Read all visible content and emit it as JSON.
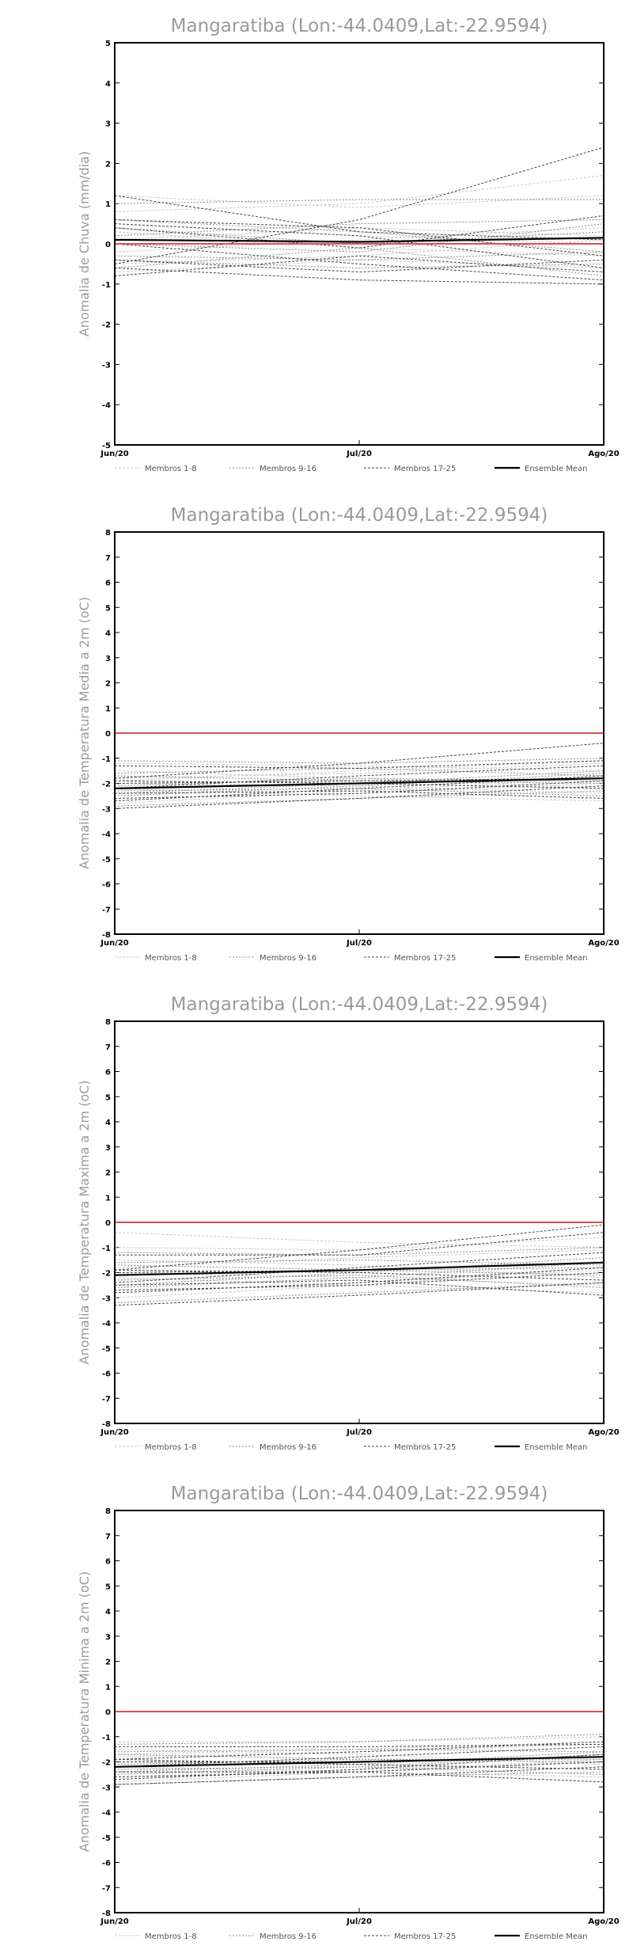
{
  "chart_data": [
    {
      "type": "line",
      "title": "Mangaratiba (Lon:-44.0409,Lat:-22.9594)",
      "ylabel": "Anomalia de Chuva (mm/dia)",
      "x": [
        "Jun/20",
        "Jul/20",
        "Ago/20"
      ],
      "ylim": [
        -5,
        5
      ],
      "yticks": [
        -5,
        -4,
        -3,
        -2,
        -1,
        0,
        1,
        2,
        3,
        4,
        5
      ],
      "zero_line_color": "#d9534f",
      "legend": [
        "Membros 1-8",
        "Membros 9-16",
        "Membros 17-25",
        "Ensemble Mean"
      ],
      "series": [
        {
          "group": 1,
          "values": [
            0.8,
            1.0,
            1.7
          ]
        },
        {
          "group": 1,
          "values": [
            1.2,
            0.9,
            1.2
          ]
        },
        {
          "group": 1,
          "values": [
            -0.2,
            0.1,
            0.4
          ]
        },
        {
          "group": 1,
          "values": [
            0.3,
            -0.1,
            -0.3
          ]
        },
        {
          "group": 1,
          "values": [
            -0.5,
            -0.3,
            0.1
          ]
        },
        {
          "group": 1,
          "values": [
            0.1,
            0.4,
            0.2
          ]
        },
        {
          "group": 1,
          "values": [
            -0.7,
            -0.4,
            -0.6
          ]
        },
        {
          "group": 1,
          "values": [
            0.5,
            0.2,
            0.0
          ]
        },
        {
          "group": 2,
          "values": [
            1.0,
            1.1,
            1.1
          ]
        },
        {
          "group": 2,
          "values": [
            0.6,
            0.3,
            -0.2
          ]
        },
        {
          "group": 2,
          "values": [
            -0.4,
            -0.6,
            -0.5
          ]
        },
        {
          "group": 2,
          "values": [
            0.0,
            -0.2,
            0.5
          ]
        },
        {
          "group": 2,
          "values": [
            -0.6,
            -0.1,
            -0.8
          ]
        },
        {
          "group": 2,
          "values": [
            0.4,
            0.0,
            0.3
          ]
        },
        {
          "group": 2,
          "values": [
            -0.3,
            -0.4,
            -0.2
          ]
        },
        {
          "group": 2,
          "values": [
            0.2,
            0.5,
            0.6
          ]
        },
        {
          "group": 3,
          "values": [
            -0.5,
            0.6,
            2.4
          ]
        },
        {
          "group": 3,
          "values": [
            1.2,
            0.3,
            0.1
          ]
        },
        {
          "group": 3,
          "values": [
            0.5,
            0.2,
            -0.6
          ]
        },
        {
          "group": 3,
          "values": [
            -0.8,
            -0.3,
            -0.7
          ]
        },
        {
          "group": 3,
          "values": [
            0.0,
            -0.5,
            -0.9
          ]
        },
        {
          "group": 3,
          "values": [
            0.4,
            -0.1,
            0.7
          ]
        },
        {
          "group": 3,
          "values": [
            -0.4,
            -0.7,
            -0.4
          ]
        },
        {
          "group": 3,
          "values": [
            0.6,
            0.4,
            -0.3
          ]
        },
        {
          "group": 3,
          "values": [
            -0.6,
            -0.9,
            -1.0
          ]
        },
        {
          "group": 0,
          "values": [
            0.1,
            0.05,
            0.15
          ]
        },
        {
          "group": 4,
          "values": [
            0.0,
            0.0,
            0.0
          ]
        }
      ]
    },
    {
      "type": "line",
      "title": "Mangaratiba (Lon:-44.0409,Lat:-22.9594)",
      "ylabel": "Anomalia de Temperatura Media a 2m (oC)",
      "x": [
        "Jun/20",
        "Jul/20",
        "Ago/20"
      ],
      "ylim": [
        -8,
        8
      ],
      "yticks": [
        -8,
        -7,
        -6,
        -5,
        -4,
        -3,
        -2,
        -1,
        0,
        1,
        2,
        3,
        4,
        5,
        6,
        7,
        8
      ],
      "zero_line_color": "#d9534f",
      "legend": [
        "Membros 1-8",
        "Membros 9-16",
        "Membros 17-25",
        "Ensemble Mean"
      ],
      "series": [
        {
          "group": 1,
          "values": [
            -1.2,
            -1.3,
            -1.5
          ]
        },
        {
          "group": 1,
          "values": [
            -1.8,
            -1.6,
            -1.2
          ]
        },
        {
          "group": 1,
          "values": [
            -2.6,
            -2.4,
            -2.0
          ]
        },
        {
          "group": 1,
          "values": [
            -2.2,
            -2.5,
            -2.7
          ]
        },
        {
          "group": 1,
          "values": [
            -1.5,
            -1.8,
            -2.2
          ]
        },
        {
          "group": 1,
          "values": [
            -2.8,
            -2.3,
            -1.8
          ]
        },
        {
          "group": 1,
          "values": [
            -2.0,
            -2.1,
            -2.4
          ]
        },
        {
          "group": 1,
          "values": [
            -1.9,
            -1.5,
            -1.1
          ]
        },
        {
          "group": 2,
          "values": [
            -1.1,
            -1.2,
            -1.0
          ]
        },
        {
          "group": 2,
          "values": [
            -2.4,
            -2.0,
            -1.5
          ]
        },
        {
          "group": 2,
          "values": [
            -1.7,
            -1.9,
            -2.0
          ]
        },
        {
          "group": 2,
          "values": [
            -2.9,
            -2.6,
            -2.3
          ]
        },
        {
          "group": 2,
          "values": [
            -2.1,
            -1.8,
            -1.9
          ]
        },
        {
          "group": 2,
          "values": [
            -1.6,
            -1.4,
            -1.7
          ]
        },
        {
          "group": 2,
          "values": [
            -2.3,
            -2.2,
            -2.5
          ]
        },
        {
          "group": 2,
          "values": [
            -2.5,
            -2.1,
            -1.6
          ]
        },
        {
          "group": 3,
          "values": [
            -1.8,
            -1.2,
            -0.4
          ]
        },
        {
          "group": 3,
          "values": [
            -1.3,
            -1.4,
            -1.1
          ]
        },
        {
          "group": 3,
          "values": [
            -2.2,
            -1.7,
            -1.3
          ]
        },
        {
          "group": 3,
          "values": [
            -3.0,
            -2.6,
            -2.1
          ]
        },
        {
          "group": 3,
          "values": [
            -2.6,
            -2.4,
            -1.9
          ]
        },
        {
          "group": 3,
          "values": [
            -2.0,
            -1.9,
            -1.8
          ]
        },
        {
          "group": 3,
          "values": [
            -2.4,
            -2.3,
            -2.6
          ]
        },
        {
          "group": 3,
          "values": [
            -1.9,
            -2.0,
            -2.2
          ]
        },
        {
          "group": 3,
          "values": [
            -2.7,
            -2.2,
            -1.7
          ]
        },
        {
          "group": 0,
          "values": [
            -2.2,
            -2.0,
            -1.8
          ]
        },
        {
          "group": 4,
          "values": [
            0.0,
            0.0,
            0.0
          ]
        }
      ]
    },
    {
      "type": "line",
      "title": "Mangaratiba (Lon:-44.0409,Lat:-22.9594)",
      "ylabel": "Anomalia de Temperatura Maxima a 2m (oC)",
      "x": [
        "Jun/20",
        "Jul/20",
        "Ago/20"
      ],
      "ylim": [
        -8,
        8
      ],
      "yticks": [
        -8,
        -7,
        -6,
        -5,
        -4,
        -3,
        -2,
        -1,
        0,
        1,
        2,
        3,
        4,
        5,
        6,
        7,
        8
      ],
      "zero_line_color": "#d9534f",
      "legend": [
        "Membros 1-8",
        "Membros 9-16",
        "Membros 17-25",
        "Ensemble Mean"
      ],
      "series": [
        {
          "group": 1,
          "values": [
            -0.4,
            -0.8,
            -1.0
          ]
        },
        {
          "group": 1,
          "values": [
            -1.0,
            -1.1,
            -0.6
          ]
        },
        {
          "group": 1,
          "values": [
            -2.8,
            -2.4,
            -1.9
          ]
        },
        {
          "group": 1,
          "values": [
            -2.2,
            -2.5,
            -2.8
          ]
        },
        {
          "group": 1,
          "values": [
            -1.5,
            -1.7,
            -2.2
          ]
        },
        {
          "group": 1,
          "values": [
            -3.0,
            -2.5,
            -1.8
          ]
        },
        {
          "group": 1,
          "values": [
            -2.0,
            -2.2,
            -2.5
          ]
        },
        {
          "group": 1,
          "values": [
            -1.8,
            -1.4,
            -1.1
          ]
        },
        {
          "group": 2,
          "values": [
            -1.2,
            -1.3,
            -1.0
          ]
        },
        {
          "group": 2,
          "values": [
            -2.5,
            -2.0,
            -1.4
          ]
        },
        {
          "group": 2,
          "values": [
            -1.7,
            -1.9,
            -2.1
          ]
        },
        {
          "group": 2,
          "values": [
            -3.2,
            -2.8,
            -2.4
          ]
        },
        {
          "group": 2,
          "values": [
            -2.1,
            -1.9,
            -1.8
          ]
        },
        {
          "group": 2,
          "values": [
            -1.6,
            -1.5,
            -1.7
          ]
        },
        {
          "group": 2,
          "values": [
            -2.3,
            -2.1,
            -2.6
          ]
        },
        {
          "group": 2,
          "values": [
            -2.6,
            -2.2,
            -1.6
          ]
        },
        {
          "group": 3,
          "values": [
            -1.9,
            -1.1,
            -0.1
          ]
        },
        {
          "group": 3,
          "values": [
            -1.3,
            -1.3,
            -0.4
          ]
        },
        {
          "group": 3,
          "values": [
            -2.4,
            -1.8,
            -1.2
          ]
        },
        {
          "group": 3,
          "values": [
            -3.3,
            -2.9,
            -2.4
          ]
        },
        {
          "group": 3,
          "values": [
            -2.7,
            -2.5,
            -2.0
          ]
        },
        {
          "group": 3,
          "values": [
            -2.0,
            -1.9,
            -1.6
          ]
        },
        {
          "group": 3,
          "values": [
            -2.5,
            -2.3,
            -2.9
          ]
        },
        {
          "group": 3,
          "values": [
            -1.9,
            -2.0,
            -2.3
          ]
        },
        {
          "group": 3,
          "values": [
            -2.8,
            -2.4,
            -1.8
          ]
        },
        {
          "group": 0,
          "values": [
            -2.1,
            -1.9,
            -1.6
          ]
        },
        {
          "group": 4,
          "values": [
            0.0,
            0.0,
            0.0
          ]
        }
      ]
    },
    {
      "type": "line",
      "title": "Mangaratiba (Lon:-44.0409,Lat:-22.9594)",
      "ylabel": "Anomalia de Temperatura Minima a 2m (oC)",
      "x": [
        "Jun/20",
        "Jul/20",
        "Ago/20"
      ],
      "ylim": [
        -8,
        8
      ],
      "yticks": [
        -8,
        -7,
        -6,
        -5,
        -4,
        -3,
        -2,
        -1,
        0,
        1,
        2,
        3,
        4,
        5,
        6,
        7,
        8
      ],
      "zero_line_color": "#d9534f",
      "legend": [
        "Membros 1-8",
        "Membros 9-16",
        "Membros 17-25",
        "Ensemble Mean"
      ],
      "series": [
        {
          "group": 1,
          "values": [
            -1.2,
            -1.2,
            -1.0
          ]
        },
        {
          "group": 1,
          "values": [
            -1.7,
            -1.5,
            -1.2
          ]
        },
        {
          "group": 1,
          "values": [
            -2.6,
            -2.3,
            -2.0
          ]
        },
        {
          "group": 1,
          "values": [
            -2.2,
            -2.4,
            -2.6
          ]
        },
        {
          "group": 1,
          "values": [
            -1.5,
            -1.7,
            -2.1
          ]
        },
        {
          "group": 1,
          "values": [
            -2.8,
            -2.4,
            -1.9
          ]
        },
        {
          "group": 1,
          "values": [
            -2.0,
            -2.1,
            -2.3
          ]
        },
        {
          "group": 1,
          "values": [
            -1.8,
            -1.6,
            -1.3
          ]
        },
        {
          "group": 2,
          "values": [
            -1.3,
            -1.2,
            -0.9
          ]
        },
        {
          "group": 2,
          "values": [
            -2.4,
            -2.1,
            -1.6
          ]
        },
        {
          "group": 2,
          "values": [
            -1.7,
            -1.9,
            -2.0
          ]
        },
        {
          "group": 2,
          "values": [
            -2.9,
            -2.6,
            -2.4
          ]
        },
        {
          "group": 2,
          "values": [
            -2.1,
            -1.9,
            -1.9
          ]
        },
        {
          "group": 2,
          "values": [
            -1.6,
            -1.5,
            -1.6
          ]
        },
        {
          "group": 2,
          "values": [
            -2.3,
            -2.2,
            -2.5
          ]
        },
        {
          "group": 2,
          "values": [
            -2.5,
            -2.2,
            -1.7
          ]
        },
        {
          "group": 3,
          "values": [
            -1.9,
            -1.6,
            -1.2
          ]
        },
        {
          "group": 3,
          "values": [
            -1.4,
            -1.4,
            -1.3
          ]
        },
        {
          "group": 3,
          "values": [
            -2.2,
            -1.8,
            -1.4
          ]
        },
        {
          "group": 3,
          "values": [
            -2.9,
            -2.6,
            -2.2
          ]
        },
        {
          "group": 3,
          "values": [
            -2.6,
            -2.4,
            -2.0
          ]
        },
        {
          "group": 3,
          "values": [
            -2.0,
            -2.0,
            -1.8
          ]
        },
        {
          "group": 3,
          "values": [
            -2.4,
            -2.4,
            -2.8
          ]
        },
        {
          "group": 3,
          "values": [
            -1.9,
            -2.1,
            -2.3
          ]
        },
        {
          "group": 3,
          "values": [
            -2.7,
            -2.3,
            -1.7
          ]
        },
        {
          "group": 0,
          "values": [
            -2.2,
            -2.0,
            -1.8
          ]
        },
        {
          "group": 4,
          "values": [
            0.0,
            0.0,
            0.0
          ]
        }
      ]
    }
  ]
}
